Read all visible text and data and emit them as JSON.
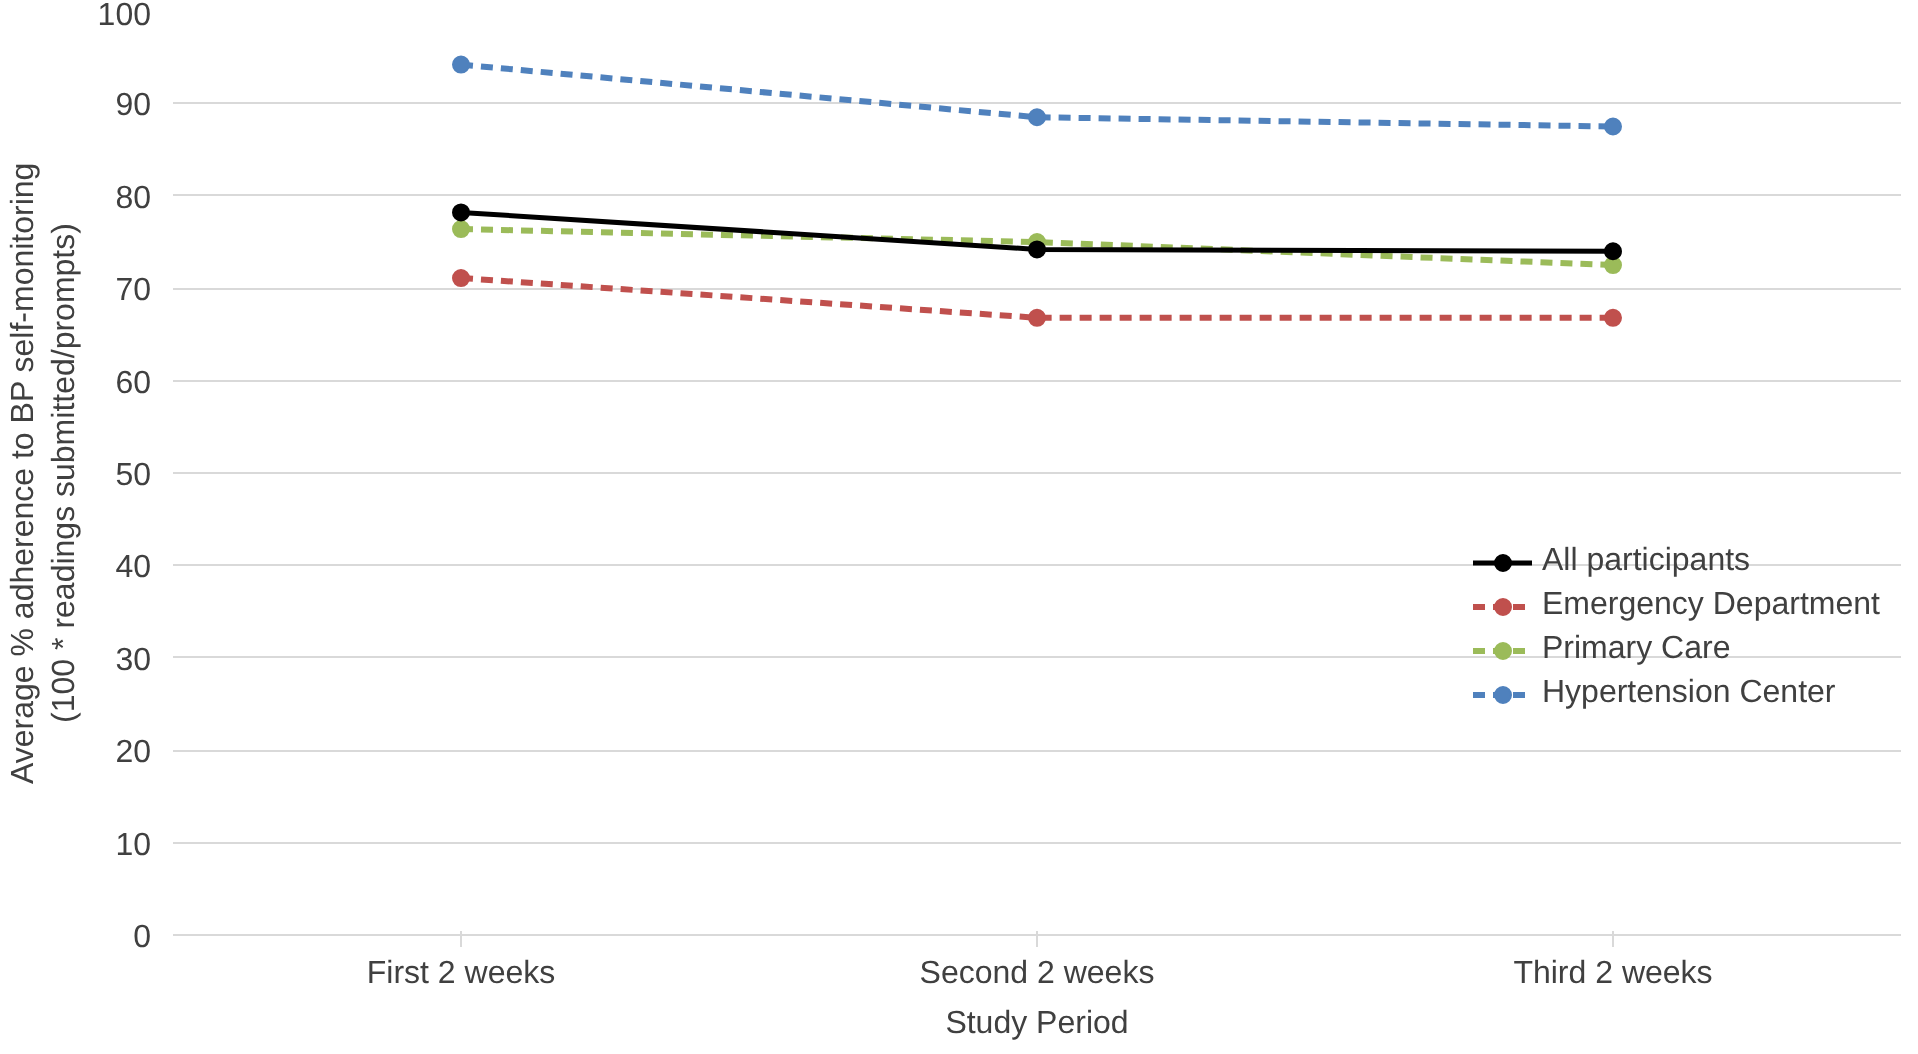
{
  "chart_data": {
    "type": "line",
    "xlabel": "Study Period",
    "ylabel": "Average % adherence to BP self-monitoring\n(100 * readings submitted/prompts)",
    "categories": [
      "First 2 weeks",
      "Second 2 weeks",
      "Third 2 weeks"
    ],
    "ylim": [
      0,
      100
    ],
    "yticks": [
      0,
      10,
      20,
      30,
      40,
      50,
      60,
      70,
      80,
      90,
      100
    ],
    "grid": "y",
    "legend": "right",
    "marker": "circle",
    "series": [
      {
        "name": "All participants",
        "color": "#000000",
        "line_style": "solid",
        "values": [
          78.2,
          74.2,
          74.0
        ]
      },
      {
        "name": "Emergency Department",
        "color": "#c0504d",
        "line_style": "dashed",
        "values": [
          71.1,
          66.8,
          66.8
        ]
      },
      {
        "name": "Primary Care",
        "color": "#9bbb59",
        "line_style": "dashed",
        "values": [
          76.4,
          75.0,
          72.5
        ]
      },
      {
        "name": "Hypertension Center",
        "color": "#4f81bd",
        "line_style": "dashed",
        "values": [
          94.2,
          88.5,
          87.5
        ]
      }
    ]
  }
}
